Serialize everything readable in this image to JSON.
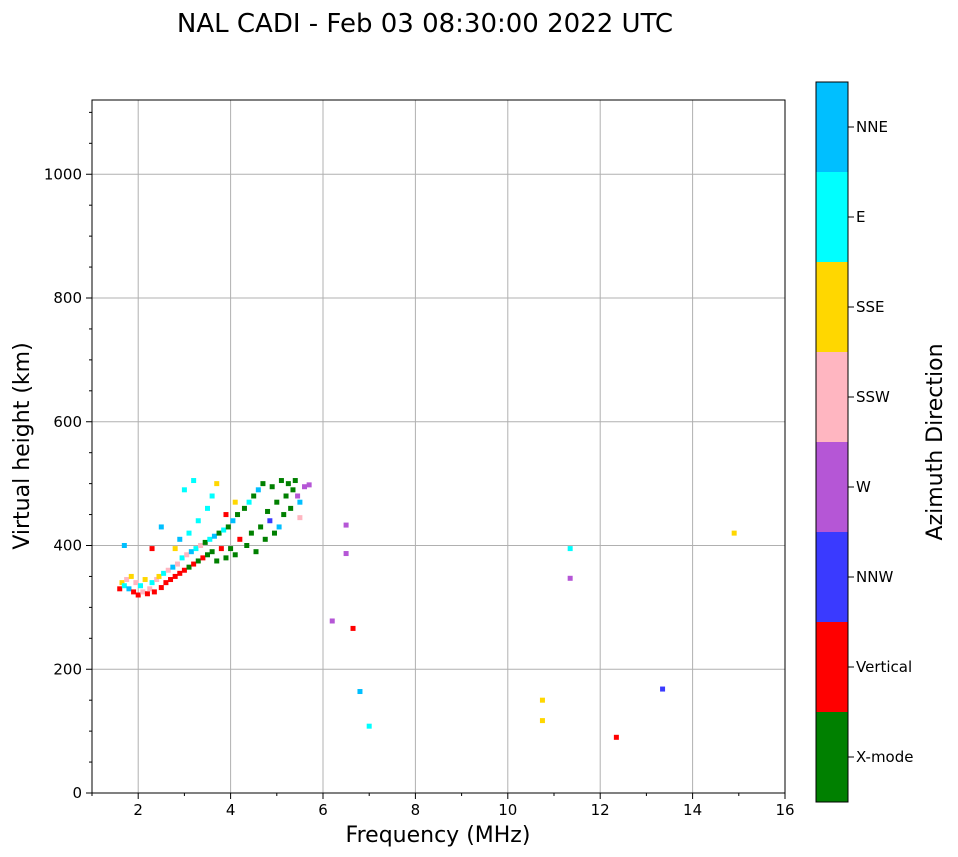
{
  "chart_data": {
    "type": "scatter",
    "title": "NAL CADI - Feb 03 08:30:00 2022 UTC",
    "xlabel": "Frequency (MHz)",
    "ylabel": "Virtual height (km)",
    "xlim": [
      1,
      16
    ],
    "ylim": [
      0,
      1120
    ],
    "xticks": [
      2,
      4,
      6,
      8,
      10,
      12,
      14,
      16
    ],
    "yticks": [
      0,
      200,
      400,
      600,
      800,
      1000
    ],
    "grid": true,
    "colorbar": {
      "label": "Azimuth Direction",
      "categories": [
        {
          "name": "X-mode",
          "color": "#008000"
        },
        {
          "name": "Vertical",
          "color": "#ff0000"
        },
        {
          "name": "NNW",
          "color": "#3a3aff"
        },
        {
          "name": "W",
          "color": "#b556d6"
        },
        {
          "name": "SSW",
          "color": "#ffb6c1"
        },
        {
          "name": "SSE",
          "color": "#ffd700"
        },
        {
          "name": "E",
          "color": "#00ffff"
        },
        {
          "name": "NNE",
          "color": "#00bfff"
        }
      ]
    },
    "points": [
      {
        "f": 1.6,
        "h": 330,
        "c": "Vertical"
      },
      {
        "f": 1.65,
        "h": 340,
        "c": "SSE"
      },
      {
        "f": 1.7,
        "h": 335,
        "c": "E"
      },
      {
        "f": 1.75,
        "h": 345,
        "c": "SSW"
      },
      {
        "f": 1.8,
        "h": 330,
        "c": "NNE"
      },
      {
        "f": 1.85,
        "h": 350,
        "c": "SSE"
      },
      {
        "f": 1.9,
        "h": 325,
        "c": "Vertical"
      },
      {
        "f": 1.95,
        "h": 340,
        "c": "SSW"
      },
      {
        "f": 2.0,
        "h": 320,
        "c": "Vertical"
      },
      {
        "f": 2.05,
        "h": 335,
        "c": "E"
      },
      {
        "f": 2.1,
        "h": 325,
        "c": "SSW"
      },
      {
        "f": 2.15,
        "h": 345,
        "c": "SSE"
      },
      {
        "f": 2.2,
        "h": 322,
        "c": "Vertical"
      },
      {
        "f": 2.25,
        "h": 330,
        "c": "SSW"
      },
      {
        "f": 2.3,
        "h": 340,
        "c": "E"
      },
      {
        "f": 2.35,
        "h": 325,
        "c": "Vertical"
      },
      {
        "f": 2.4,
        "h": 345,
        "c": "SSW"
      },
      {
        "f": 2.45,
        "h": 350,
        "c": "SSE"
      },
      {
        "f": 2.5,
        "h": 332,
        "c": "Vertical"
      },
      {
        "f": 2.55,
        "h": 355,
        "c": "E"
      },
      {
        "f": 2.6,
        "h": 340,
        "c": "Vertical"
      },
      {
        "f": 2.65,
        "h": 360,
        "c": "SSW"
      },
      {
        "f": 2.7,
        "h": 345,
        "c": "Vertical"
      },
      {
        "f": 2.75,
        "h": 365,
        "c": "NNE"
      },
      {
        "f": 2.8,
        "h": 350,
        "c": "Vertical"
      },
      {
        "f": 2.85,
        "h": 370,
        "c": "SSW"
      },
      {
        "f": 2.9,
        "h": 355,
        "c": "Vertical"
      },
      {
        "f": 2.95,
        "h": 380,
        "c": "E"
      },
      {
        "f": 3.0,
        "h": 360,
        "c": "Vertical"
      },
      {
        "f": 3.05,
        "h": 385,
        "c": "SSW"
      },
      {
        "f": 3.1,
        "h": 365,
        "c": "X-mode"
      },
      {
        "f": 3.15,
        "h": 390,
        "c": "NNE"
      },
      {
        "f": 3.2,
        "h": 370,
        "c": "Vertical"
      },
      {
        "f": 3.25,
        "h": 395,
        "c": "E"
      },
      {
        "f": 3.3,
        "h": 375,
        "c": "X-mode"
      },
      {
        "f": 3.35,
        "h": 400,
        "c": "SSW"
      },
      {
        "f": 3.4,
        "h": 380,
        "c": "Vertical"
      },
      {
        "f": 3.45,
        "h": 405,
        "c": "X-mode"
      },
      {
        "f": 3.5,
        "h": 385,
        "c": "X-mode"
      },
      {
        "f": 3.55,
        "h": 410,
        "c": "E"
      },
      {
        "f": 3.6,
        "h": 390,
        "c": "X-mode"
      },
      {
        "f": 3.65,
        "h": 415,
        "c": "NNE"
      },
      {
        "f": 3.7,
        "h": 375,
        "c": "X-mode"
      },
      {
        "f": 3.75,
        "h": 420,
        "c": "X-mode"
      },
      {
        "f": 3.8,
        "h": 395,
        "c": "Vertical"
      },
      {
        "f": 3.85,
        "h": 425,
        "c": "E"
      },
      {
        "f": 3.9,
        "h": 380,
        "c": "X-mode"
      },
      {
        "f": 3.95,
        "h": 430,
        "c": "X-mode"
      },
      {
        "f": 4.0,
        "h": 395,
        "c": "X-mode"
      },
      {
        "f": 4.05,
        "h": 440,
        "c": "NNE"
      },
      {
        "f": 4.1,
        "h": 385,
        "c": "X-mode"
      },
      {
        "f": 4.15,
        "h": 450,
        "c": "X-mode"
      },
      {
        "f": 4.2,
        "h": 410,
        "c": "Vertical"
      },
      {
        "f": 4.3,
        "h": 460,
        "c": "X-mode"
      },
      {
        "f": 4.35,
        "h": 400,
        "c": "X-mode"
      },
      {
        "f": 4.4,
        "h": 470,
        "c": "E"
      },
      {
        "f": 4.45,
        "h": 420,
        "c": "X-mode"
      },
      {
        "f": 4.5,
        "h": 480,
        "c": "X-mode"
      },
      {
        "f": 4.55,
        "h": 390,
        "c": "X-mode"
      },
      {
        "f": 4.6,
        "h": 490,
        "c": "NNE"
      },
      {
        "f": 4.65,
        "h": 430,
        "c": "X-mode"
      },
      {
        "f": 4.7,
        "h": 500,
        "c": "X-mode"
      },
      {
        "f": 4.75,
        "h": 410,
        "c": "X-mode"
      },
      {
        "f": 4.8,
        "h": 455,
        "c": "X-mode"
      },
      {
        "f": 4.85,
        "h": 440,
        "c": "NNW"
      },
      {
        "f": 4.9,
        "h": 495,
        "c": "X-mode"
      },
      {
        "f": 4.95,
        "h": 420,
        "c": "X-mode"
      },
      {
        "f": 5.0,
        "h": 470,
        "c": "X-mode"
      },
      {
        "f": 5.05,
        "h": 430,
        "c": "NNE"
      },
      {
        "f": 5.1,
        "h": 505,
        "c": "X-mode"
      },
      {
        "f": 5.15,
        "h": 450,
        "c": "X-mode"
      },
      {
        "f": 5.2,
        "h": 480,
        "c": "X-mode"
      },
      {
        "f": 5.25,
        "h": 500,
        "c": "X-mode"
      },
      {
        "f": 5.3,
        "h": 460,
        "c": "X-mode"
      },
      {
        "f": 5.35,
        "h": 490,
        "c": "X-mode"
      },
      {
        "f": 5.4,
        "h": 505,
        "c": "X-mode"
      },
      {
        "f": 5.45,
        "h": 480,
        "c": "W"
      },
      {
        "f": 5.5,
        "h": 470,
        "c": "NNE"
      },
      {
        "f": 5.6,
        "h": 495,
        "c": "W"
      },
      {
        "f": 5.7,
        "h": 498,
        "c": "W"
      },
      {
        "f": 5.5,
        "h": 445,
        "c": "SSW"
      },
      {
        "f": 2.9,
        "h": 410,
        "c": "NNE"
      },
      {
        "f": 3.1,
        "h": 420,
        "c": "E"
      },
      {
        "f": 3.3,
        "h": 440,
        "c": "E"
      },
      {
        "f": 3.5,
        "h": 460,
        "c": "E"
      },
      {
        "f": 3.6,
        "h": 480,
        "c": "E"
      },
      {
        "f": 3.7,
        "h": 500,
        "c": "SSE"
      },
      {
        "f": 3.0,
        "h": 490,
        "c": "E"
      },
      {
        "f": 3.2,
        "h": 505,
        "c": "E"
      },
      {
        "f": 2.5,
        "h": 430,
        "c": "NNE"
      },
      {
        "f": 2.3,
        "h": 395,
        "c": "Vertical"
      },
      {
        "f": 1.7,
        "h": 400,
        "c": "NNE"
      },
      {
        "f": 2.8,
        "h": 395,
        "c": "SSE"
      },
      {
        "f": 4.1,
        "h": 470,
        "c": "SSE"
      },
      {
        "f": 3.9,
        "h": 450,
        "c": "Vertical"
      },
      {
        "f": 6.5,
        "h": 433,
        "c": "W"
      },
      {
        "f": 6.5,
        "h": 387,
        "c": "W"
      },
      {
        "f": 6.2,
        "h": 278,
        "c": "W"
      },
      {
        "f": 6.65,
        "h": 266,
        "c": "Vertical"
      },
      {
        "f": 6.8,
        "h": 164,
        "c": "NNE"
      },
      {
        "f": 7.0,
        "h": 108,
        "c": "E"
      },
      {
        "f": 10.75,
        "h": 150,
        "c": "SSE"
      },
      {
        "f": 10.75,
        "h": 117,
        "c": "SSE"
      },
      {
        "f": 11.35,
        "h": 395,
        "c": "E"
      },
      {
        "f": 11.35,
        "h": 347,
        "c": "W"
      },
      {
        "f": 12.35,
        "h": 90,
        "c": "Vertical"
      },
      {
        "f": 13.35,
        "h": 168,
        "c": "NNW"
      },
      {
        "f": 14.9,
        "h": 420,
        "c": "SSE"
      }
    ]
  }
}
